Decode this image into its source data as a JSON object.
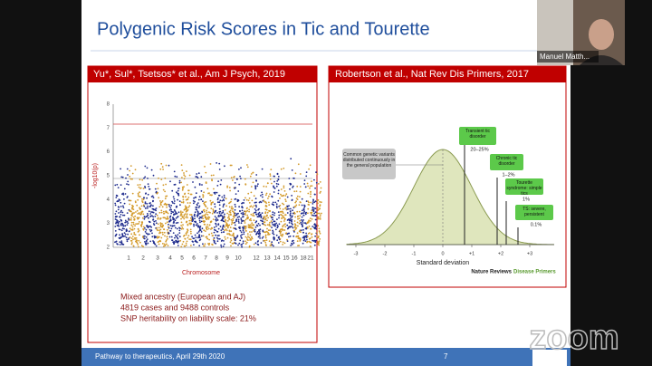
{
  "slide": {
    "title": "Polygenic Risk Scores in Tic and Tourette",
    "left_panel": {
      "header": "Yu*, Sul*, Tsetsos* et al., Am J Psych, 2019",
      "plot": {
        "y_label": "-log10(p)",
        "yticks": [
          "2",
          "3",
          "4",
          "5",
          "6",
          "7",
          "8"
        ],
        "x_labels": [
          "1",
          "2",
          "3",
          "4",
          "5",
          "6",
          "7",
          "8",
          "9",
          "10",
          "12",
          "13",
          "14",
          "15",
          "16",
          "18",
          "21"
        ],
        "x_label": "Chromosome"
      },
      "notes": [
        "Mixed ancestry (European and AJ)",
        "4819 cases and 9488 controls",
        "SNP heritability on liability scale: 21%"
      ]
    },
    "right_panel": {
      "header": "Robertson et al., Nat Rev Dis Primers, 2017",
      "callout": "Common genetic variants distributed continuously in the general population",
      "boxes": [
        {
          "label": "Transient tic disorder",
          "rate": "20–25%"
        },
        {
          "label": "Chronic tic disorder",
          "rate": "1–2%"
        },
        {
          "label": "Tourette syndrome: simple tics",
          "rate": "1%"
        },
        {
          "label": "TS: severe, persistent",
          "rate": "0.1%"
        }
      ],
      "xticks": [
        "-3",
        "-2",
        "-1",
        "0",
        "+1",
        "+2",
        "+3"
      ],
      "x_label": "Standard deviation",
      "source": "Nature Reviews",
      "source_part": "Disease Primers"
    },
    "footer": {
      "text": "Pathway to therapeutics, April 29th 2020",
      "page": "7"
    }
  },
  "participant": {
    "name": "Manuel Matth..."
  },
  "brand": "zoom"
}
